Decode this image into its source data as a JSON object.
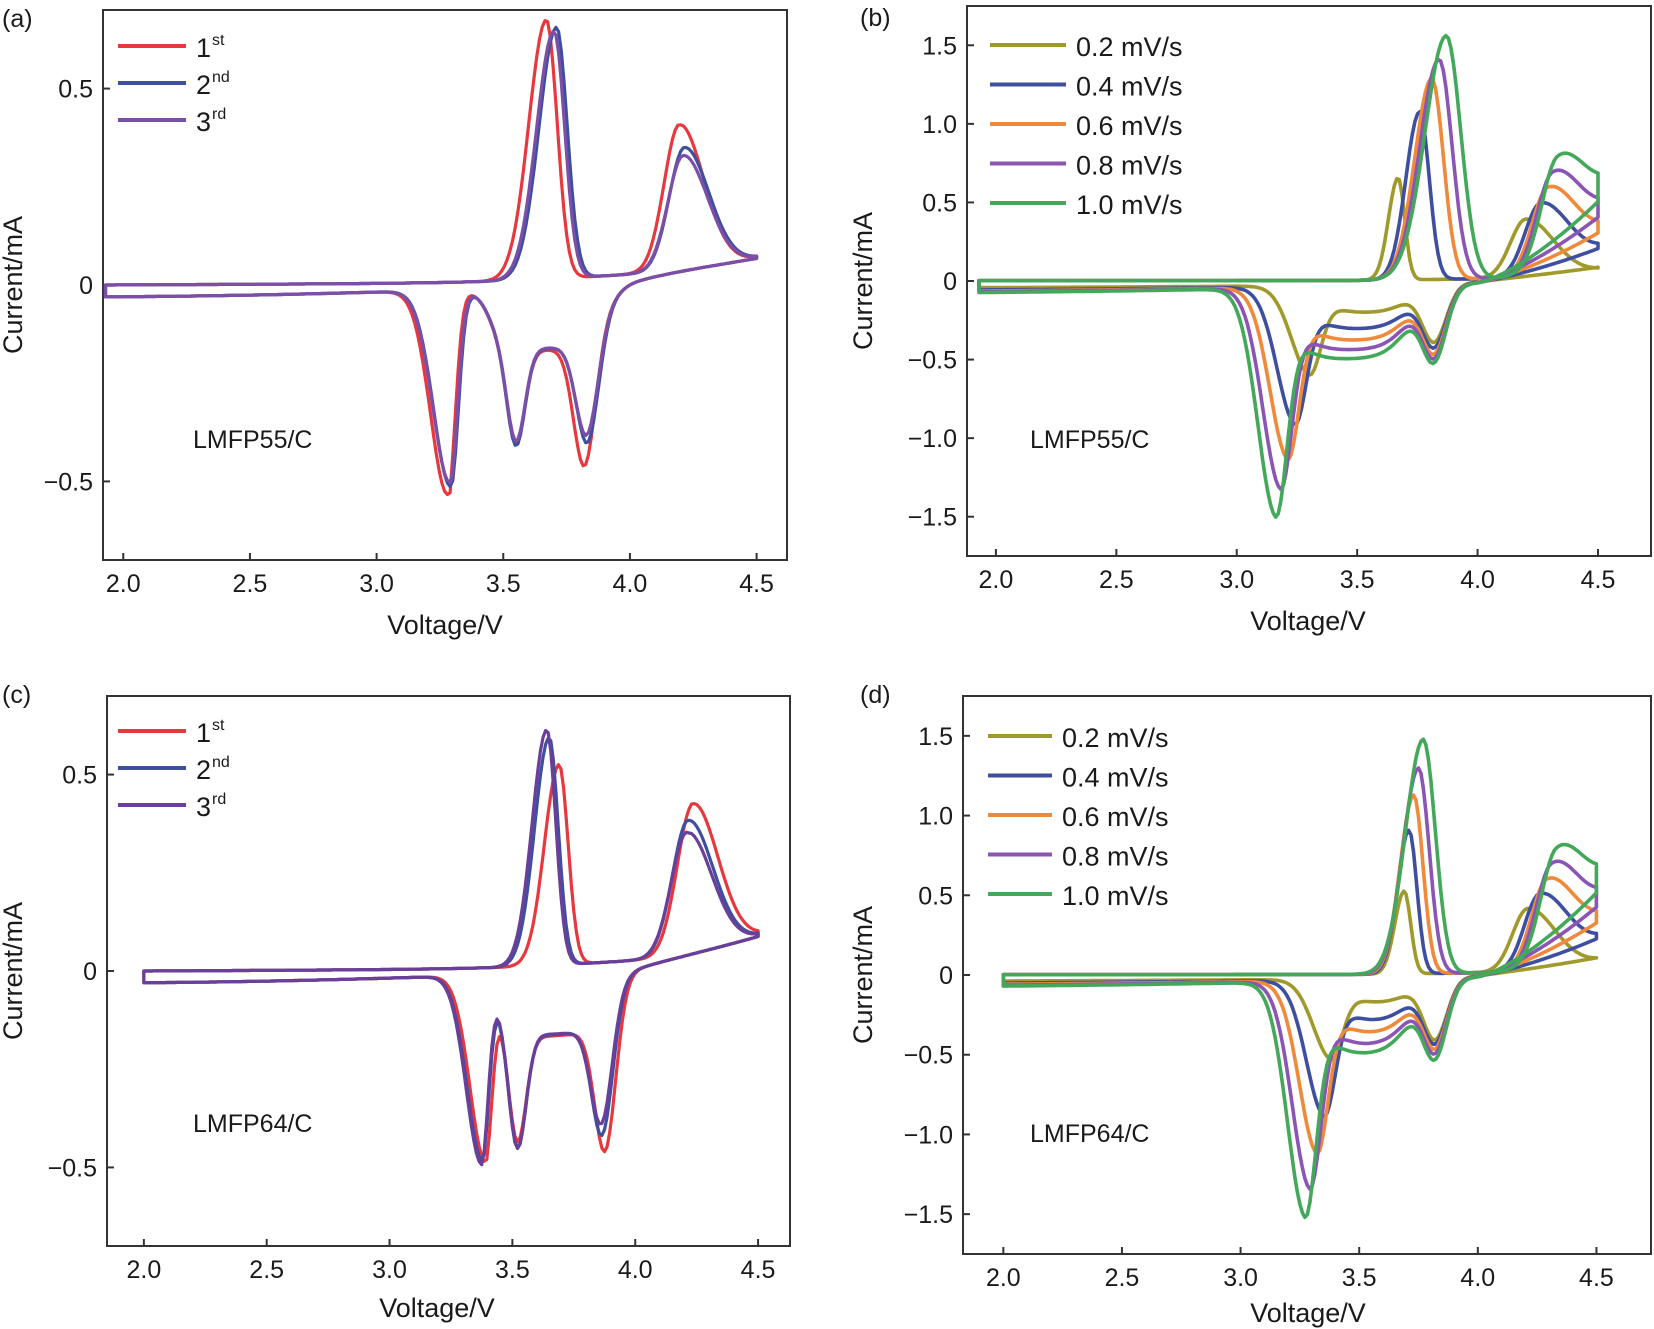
{
  "chart_data": [
    {
      "type": "line",
      "panel_label": "(a)",
      "sample": "LMFP55/C",
      "xlabel": "Voltage/V",
      "ylabel": "Current/mA",
      "xlim": [
        1.92,
        4.62
      ],
      "ylim": [
        -0.7,
        0.7
      ],
      "xticks": [
        2.0,
        2.5,
        3.0,
        3.5,
        4.0,
        4.5
      ],
      "xtick_labels": [
        "2.0",
        "2.5",
        "3.0",
        "3.5",
        "4.0",
        "4.5"
      ],
      "yticks": [
        -0.5,
        0,
        0.5
      ],
      "ytick_labels": [
        "−0.5",
        "0",
        "0.5"
      ],
      "legend": [
        {
          "base": "1",
          "sup": "st",
          "color": "#e8383d"
        },
        {
          "base": "2",
          "sup": "nd",
          "color": "#3f4fa0"
        },
        {
          "base": "3",
          "sup": "rd",
          "color": "#7b4fa8"
        }
      ],
      "series": [
        {
          "name": "1st",
          "color": "#e8383d",
          "dv": -0.03,
          "scale": 1.0,
          "pa": 0.66,
          "pb": 0.37,
          "ca": -0.52,
          "cb": -0.32,
          "cs": -0.24
        },
        {
          "name": "2nd",
          "color": "#3f4fa0",
          "dv": 0.01,
          "scale": 0.98,
          "pa": 0.64,
          "pb": 0.31,
          "ca": -0.5,
          "cb": -0.27,
          "cs": -0.25
        },
        {
          "name": "3rd",
          "color": "#7b4fa8",
          "dv": 0.0,
          "scale": 0.97,
          "pa": 0.63,
          "pb": 0.29,
          "ca": -0.49,
          "cb": -0.25,
          "cs": -0.24
        }
      ],
      "shape": {
        "vpa": 3.7,
        "wpa": 0.075,
        "vpb": 4.21,
        "wpb": 0.085,
        "vca": 3.29,
        "wca": 0.06,
        "vcb": 3.83,
        "wcb": 0.06,
        "vcs": 3.55,
        "wcs": 0.05,
        "end": 0.09,
        "vmin": 1.93,
        "vmax": 4.5
      }
    },
    {
      "type": "line",
      "panel_label": "(b)",
      "sample": "LMFP55/C",
      "xlabel": "Voltage/V",
      "ylabel": "Current/mA",
      "xlim": [
        1.88,
        4.72
      ],
      "ylim": [
        -1.75,
        1.75
      ],
      "xticks": [
        2.0,
        2.5,
        3.0,
        3.5,
        4.0,
        4.5
      ],
      "xtick_labels": [
        "2.0",
        "2.5",
        "3.0",
        "3.5",
        "4.0",
        "4.5"
      ],
      "yticks": [
        -1.5,
        -1.0,
        -0.5,
        0,
        0.5,
        1.0,
        1.5
      ],
      "ytick_labels": [
        "−1.5",
        "−1.0",
        "−0.5",
        "0",
        "0.5",
        "1.0",
        "1.5"
      ],
      "legend": [
        {
          "base": "0.2 mV/s",
          "sup": "",
          "color": "#a09a2c"
        },
        {
          "base": "0.4 mV/s",
          "sup": "",
          "color": "#3f4fa0"
        },
        {
          "base": "0.6 mV/s",
          "sup": "",
          "color": "#f08a3a"
        },
        {
          "base": "0.8 mV/s",
          "sup": "",
          "color": "#8a55b5"
        },
        {
          "base": "1.0 mV/s",
          "sup": "",
          "color": "#43a85a"
        }
      ],
      "series": [
        {
          "name": "0.2 mV/s",
          "color": "#a09a2c",
          "vpa": 3.67,
          "wpa": 0.045,
          "pa": 0.65,
          "vpb": 4.2,
          "pb": 0.37,
          "vca": 3.3,
          "ca": -0.52,
          "cb": -0.35,
          "end": 0.1
        },
        {
          "name": "0.4 mV/s",
          "color": "#3f4fa0",
          "vpa": 3.76,
          "wpa": 0.065,
          "pa": 1.07,
          "vpb": 4.26,
          "pb": 0.44,
          "vca": 3.24,
          "ca": -0.8,
          "cb": -0.37,
          "end": 0.22
        },
        {
          "name": "0.6 mV/s",
          "color": "#f08a3a",
          "vpa": 3.81,
          "wpa": 0.08,
          "pa": 1.28,
          "vpb": 4.29,
          "pb": 0.5,
          "vca": 3.21,
          "ca": -1.0,
          "cb": -0.4,
          "end": 0.32
        },
        {
          "name": "0.8 mV/s",
          "color": "#8a55b5",
          "vpa": 3.84,
          "wpa": 0.09,
          "pa": 1.4,
          "vpb": 4.31,
          "pb": 0.55,
          "vca": 3.18,
          "ca": -1.17,
          "cb": -0.42,
          "end": 0.42
        },
        {
          "name": "1.0 mV/s",
          "color": "#43a85a",
          "vpa": 3.87,
          "wpa": 0.1,
          "pa": 1.55,
          "vpb": 4.33,
          "pb": 0.59,
          "vca": 3.16,
          "ca": -1.33,
          "cb": -0.44,
          "end": 0.52
        }
      ]
    },
    {
      "type": "line",
      "panel_label": "(c)",
      "sample": "LMFP64/C",
      "xlabel": "Voltage/V",
      "ylabel": "Current/mA",
      "xlim": [
        1.85,
        4.63
      ],
      "ylim": [
        -0.7,
        0.7
      ],
      "xticks": [
        2.0,
        2.5,
        3.0,
        3.5,
        4.0,
        4.5
      ],
      "xtick_labels": [
        "2.0",
        "2.5",
        "3.0",
        "3.5",
        "4.0",
        "4.5"
      ],
      "yticks": [
        -0.5,
        0,
        0.5
      ],
      "ytick_labels": [
        "−0.5",
        "0",
        "0.5"
      ],
      "legend": [
        {
          "base": "1",
          "sup": "st",
          "color": "#e8383d"
        },
        {
          "base": "2",
          "sup": "nd",
          "color": "#3f4fa0"
        },
        {
          "base": "3",
          "sup": "rd",
          "color": "#6a3f9a"
        }
      ],
      "series": [
        {
          "name": "1st",
          "color": "#e8383d",
          "dv": 0.03,
          "scale": 1.0,
          "pa": 0.51,
          "pb": 0.38,
          "ca": -0.46,
          "cb": -0.36,
          "cs": -0.28
        },
        {
          "name": "2nd",
          "color": "#3f4fa0",
          "dv": -0.01,
          "scale": 0.98,
          "pa": 0.58,
          "pb": 0.34,
          "ca": -0.46,
          "cb": -0.31,
          "cs": -0.3
        },
        {
          "name": "3rd",
          "color": "#6a3f9a",
          "dv": -0.02,
          "scale": 0.97,
          "pa": 0.6,
          "pb": 0.31,
          "ca": -0.47,
          "cb": -0.28,
          "cs": -0.3
        }
      ],
      "shape": {
        "vpa": 3.66,
        "wpa": 0.065,
        "vpb": 4.22,
        "wpb": 0.09,
        "vca": 3.38,
        "wca": 0.055,
        "vcb": 3.87,
        "wcb": 0.06,
        "vcs": 3.52,
        "wcs": 0.05,
        "end": 0.11,
        "vmin": 2.0,
        "vmax": 4.5
      }
    },
    {
      "type": "line",
      "panel_label": "(d)",
      "sample": "LMFP64/C",
      "xlabel": "Voltage/V",
      "ylabel": "Current/mA",
      "xlim": [
        1.83,
        4.73
      ],
      "ylim": [
        -1.75,
        1.75
      ],
      "xticks": [
        2.0,
        2.5,
        3.0,
        3.5,
        4.0,
        4.5
      ],
      "xtick_labels": [
        "2.0",
        "2.5",
        "3.0",
        "3.5",
        "4.0",
        "4.5"
      ],
      "yticks": [
        -1.5,
        -1.0,
        -0.5,
        0,
        0.5,
        1.0,
        1.5
      ],
      "ytick_labels": [
        "−1.5",
        "−1.0",
        "−0.5",
        "0",
        "0.5",
        "1.0",
        "1.5"
      ],
      "legend": [
        {
          "base": "0.2 mV/s",
          "sup": "",
          "color": "#a09a2c"
        },
        {
          "base": "0.4 mV/s",
          "sup": "",
          "color": "#3f4fa0"
        },
        {
          "base": "0.6 mV/s",
          "sup": "",
          "color": "#f08a3a"
        },
        {
          "base": "0.8 mV/s",
          "sup": "",
          "color": "#8a55b5"
        },
        {
          "base": "1.0 mV/s",
          "sup": "",
          "color": "#43a85a"
        }
      ],
      "series": [
        {
          "name": "0.2 mV/s",
          "color": "#a09a2c",
          "vpa": 3.69,
          "wpa": 0.045,
          "pa": 0.52,
          "vpb": 4.21,
          "pb": 0.39,
          "vca": 3.38,
          "ca": -0.46,
          "cb": -0.37,
          "end": 0.12
        },
        {
          "name": "0.4 mV/s",
          "color": "#3f4fa0",
          "vpa": 3.71,
          "wpa": 0.055,
          "pa": 0.9,
          "vpb": 4.26,
          "pb": 0.45,
          "vca": 3.35,
          "ca": -0.78,
          "cb": -0.38,
          "end": 0.24
        },
        {
          "name": "0.6 mV/s",
          "color": "#f08a3a",
          "vpa": 3.73,
          "wpa": 0.065,
          "pa": 1.12,
          "vpb": 4.29,
          "pb": 0.5,
          "vca": 3.32,
          "ca": -0.99,
          "cb": -0.4,
          "end": 0.34
        },
        {
          "name": "0.8 mV/s",
          "color": "#8a55b5",
          "vpa": 3.75,
          "wpa": 0.075,
          "pa": 1.29,
          "vpb": 4.31,
          "pb": 0.55,
          "vca": 3.29,
          "ca": -1.19,
          "cb": -0.42,
          "end": 0.44
        },
        {
          "name": "1.0 mV/s",
          "color": "#43a85a",
          "vpa": 3.77,
          "wpa": 0.085,
          "pa": 1.47,
          "vpb": 4.33,
          "pb": 0.59,
          "vca": 3.27,
          "ca": -1.35,
          "cb": -0.45,
          "end": 0.53
        }
      ]
    }
  ]
}
